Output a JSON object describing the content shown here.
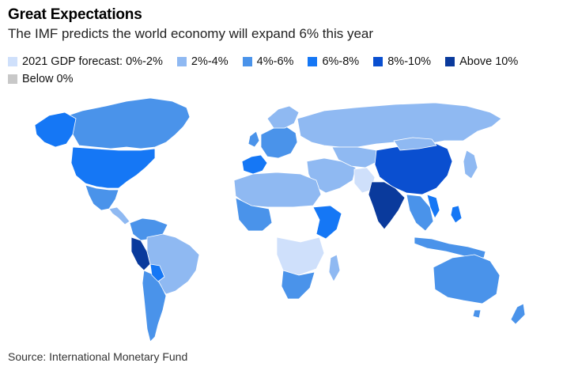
{
  "title": "Great Expectations",
  "subtitle": "The IMF predicts the world economy will expand 6% this year",
  "legend": {
    "items": [
      {
        "label": "2021 GDP forecast: 0%-2%",
        "color": "#cfe0fb"
      },
      {
        "label": "2%-4%",
        "color": "#8fb9f2"
      },
      {
        "label": "4%-6%",
        "color": "#4a93ea"
      },
      {
        "label": "6%-8%",
        "color": "#1577f5"
      },
      {
        "label": "8%-10%",
        "color": "#0a4fd0"
      },
      {
        "label": "Above 10%",
        "color": "#0a3a9c"
      },
      {
        "label": "Below 0%",
        "color": "#c8c8c8"
      }
    ]
  },
  "colors": {
    "no_data": "#ffffff",
    "border": "#ffffff",
    "outline": "#555555"
  },
  "source": "Source: International Monetary Fund"
}
